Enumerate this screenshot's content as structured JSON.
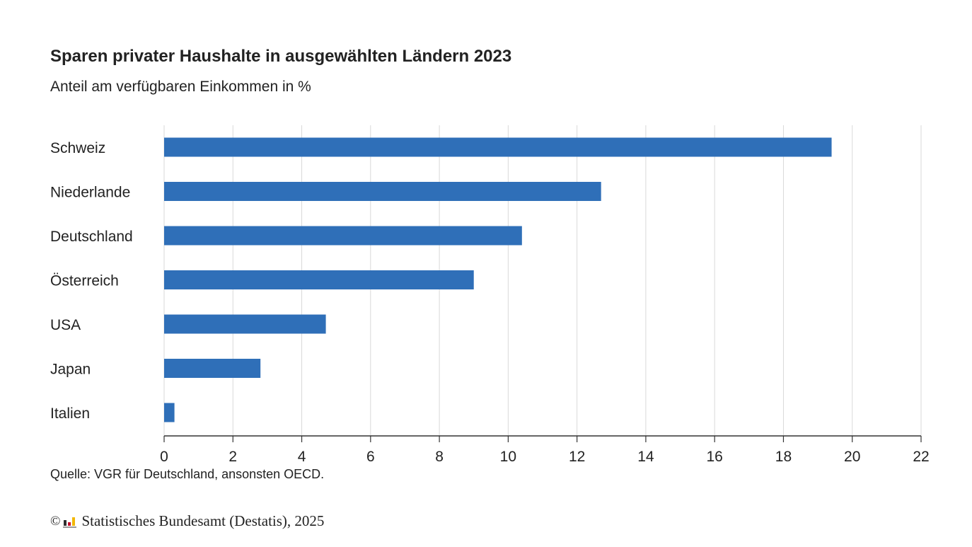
{
  "chart_data": {
    "type": "bar",
    "orientation": "horizontal",
    "title": "Sparen privater Haushalte in ausgewählten Ländern 2023",
    "subtitle": "Anteil am verfügbaren Einkommen in %",
    "categories": [
      "Schweiz",
      "Niederlande",
      "Deutschland",
      "Österreich",
      "USA",
      "Japan",
      "Italien"
    ],
    "values": [
      19.4,
      12.7,
      10.4,
      9.0,
      4.7,
      2.8,
      0.3
    ],
    "xlim": [
      0,
      22
    ],
    "xticks": [
      0,
      2,
      4,
      6,
      8,
      10,
      12,
      14,
      16,
      18,
      20,
      22
    ],
    "grid": true,
    "bar_color": "#2f6fb8"
  },
  "source": "Quelle: VGR für Deutschland, ansonsten OECD.",
  "footer": {
    "copyright_symbol": "©",
    "text": "Statistisches Bundesamt (Destatis), 2025"
  }
}
